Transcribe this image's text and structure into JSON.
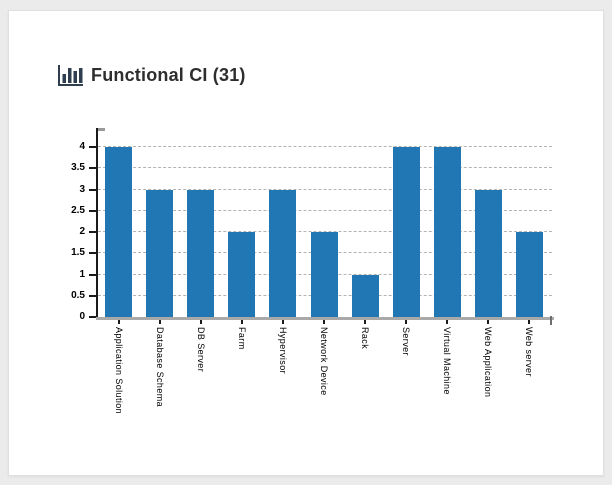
{
  "report": {
    "title": "Functional CI (31)",
    "icon": "bar-chart-icon"
  },
  "chart_data": {
    "type": "bar",
    "title": "Functional CI (31)",
    "categories": [
      "Application Solution",
      "Database Schema",
      "DB Server",
      "Farm",
      "Hypervisor",
      "Network Device",
      "Rack",
      "Server",
      "Virtual Machine",
      "Web Application",
      "Web server"
    ],
    "values": [
      4,
      3,
      3,
      2,
      3,
      2,
      1,
      4,
      4,
      3,
      2
    ],
    "total": 31,
    "xlabel": "",
    "ylabel": "",
    "ylim": [
      0,
      4.4
    ],
    "yticks": [
      0,
      0.5,
      1,
      1.5,
      2,
      2.5,
      3,
      3.5,
      4
    ],
    "grid": true,
    "grid_style": "dashed",
    "legend_position": "none",
    "x_label_rotation_deg": 90
  },
  "colors": {
    "page_bg": "#ebebeb",
    "card_bg": "#ffffff",
    "bar": "#2177b3",
    "grid": "#b3b3b3",
    "y_axis": "#1a1a1a",
    "baseline": "#a9a9a9",
    "title_text": "#2e2e2e",
    "icon": "#2e3e4e"
  }
}
